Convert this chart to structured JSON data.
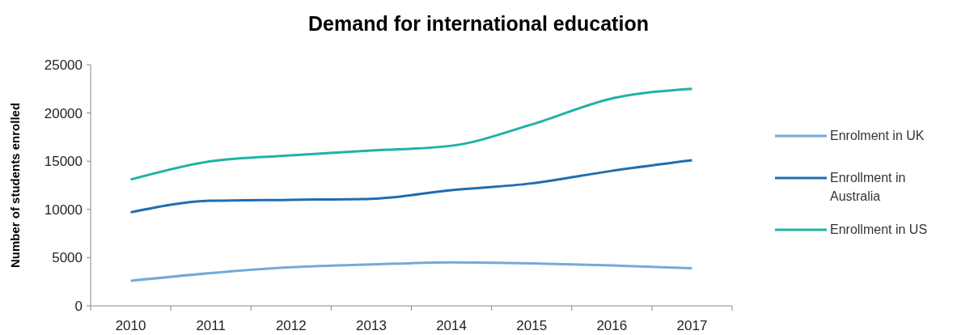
{
  "chart_data": {
    "type": "line",
    "title": "Demand for international education",
    "ylabel": "Number of students enrolled",
    "categories": [
      "2010",
      "2011",
      "2012",
      "2013",
      "2014",
      "2015",
      "2016",
      "2017"
    ],
    "series": [
      {
        "name": "Enrolment in UK",
        "color": "#74a9db",
        "values": [
          2600,
          3400,
          4000,
          4300,
          4500,
          4400,
          4200,
          3900
        ]
      },
      {
        "name": "Enrollment in Australia",
        "color": "#1f6db0",
        "values": [
          9700,
          10900,
          11000,
          11100,
          12000,
          12700,
          14000,
          15100
        ]
      },
      {
        "name": "Enrollment in US",
        "color": "#1db3a8",
        "values": [
          13100,
          15000,
          15600,
          16100,
          16600,
          18800,
          21500,
          22500
        ]
      }
    ],
    "ylim": [
      0,
      25000
    ],
    "yticks": [
      0,
      5000,
      10000,
      15000,
      20000,
      25000
    ],
    "grid": false,
    "legend": "right",
    "marker": "none",
    "line_style": "solid"
  }
}
